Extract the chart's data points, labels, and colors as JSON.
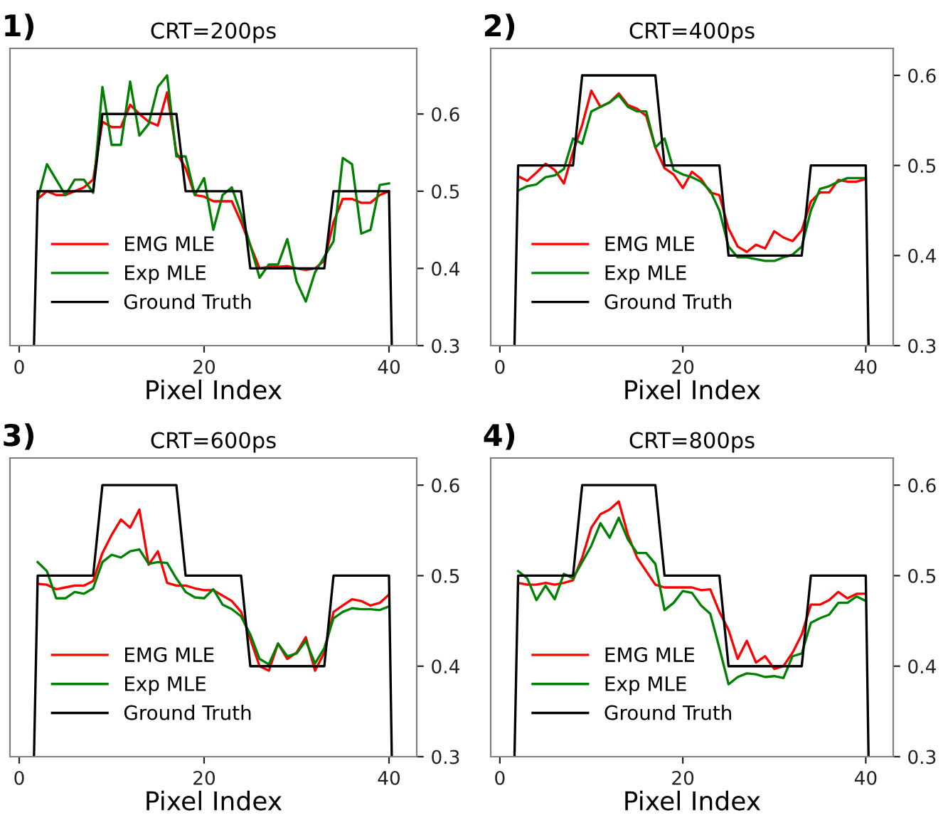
{
  "chart_data": [
    {
      "type": "line",
      "title": "CRT=200ps",
      "annotations": [
        "1)"
      ],
      "xlabel": "Pixel Index",
      "x": [
        2,
        3,
        4,
        5,
        6,
        7,
        8,
        9,
        10,
        11,
        12,
        13,
        14,
        15,
        16,
        17,
        18,
        19,
        20,
        21,
        22,
        23,
        24,
        25,
        26,
        27,
        28,
        29,
        30,
        31,
        32,
        33,
        34,
        35,
        36,
        37,
        38,
        39,
        40
      ],
      "xlim": [
        -1,
        43
      ],
      "xticks": [
        0,
        20,
        40
      ],
      "ylim": [
        0.3,
        0.685
      ],
      "yticks": [
        0.3,
        0.4,
        0.5,
        0.6
      ],
      "grid": false,
      "legend": "bottom left",
      "series": [
        {
          "name": "EMG MLE",
          "color": "#ff0000",
          "values": [
            0.49,
            0.5,
            0.495,
            0.495,
            0.5,
            0.505,
            0.515,
            0.59,
            0.583,
            0.583,
            0.612,
            0.6,
            0.59,
            0.585,
            0.628,
            0.55,
            0.53,
            0.495,
            0.493,
            0.487,
            0.487,
            0.487,
            0.46,
            0.43,
            0.4,
            0.402,
            0.402,
            0.403,
            0.4,
            0.398,
            0.4,
            0.41,
            0.46,
            0.49,
            0.49,
            0.485,
            0.485,
            0.495,
            0.5
          ]
        },
        {
          "name": "Exp MLE",
          "color": "#008000",
          "values": [
            0.49,
            0.535,
            0.515,
            0.495,
            0.515,
            0.515,
            0.498,
            0.635,
            0.56,
            0.56,
            0.642,
            0.572,
            0.587,
            0.635,
            0.65,
            0.545,
            0.545,
            0.495,
            0.517,
            0.45,
            0.495,
            0.505,
            0.47,
            0.43,
            0.388,
            0.405,
            0.405,
            0.438,
            0.383,
            0.357,
            0.395,
            0.415,
            0.435,
            0.543,
            0.535,
            0.445,
            0.45,
            0.508,
            0.51
          ]
        },
        {
          "name": "Ground Truth",
          "color": "#000000",
          "x": [
            1.6,
            2,
            8,
            9,
            17,
            18,
            24,
            25,
            33,
            34,
            40,
            40.3
          ],
          "values": [
            0.3,
            0.5,
            0.5,
            0.6,
            0.6,
            0.5,
            0.5,
            0.4,
            0.4,
            0.5,
            0.5,
            0.3
          ]
        }
      ]
    },
    {
      "type": "line",
      "title": "CRT=400ps",
      "annotations": [
        "2)"
      ],
      "xlabel": "Pixel Index",
      "x": [
        2,
        3,
        4,
        5,
        6,
        7,
        8,
        9,
        10,
        11,
        12,
        13,
        14,
        15,
        16,
        17,
        18,
        19,
        20,
        21,
        22,
        23,
        24,
        25,
        26,
        27,
        28,
        29,
        30,
        31,
        32,
        33,
        34,
        35,
        36,
        37,
        38,
        39,
        40
      ],
      "xlim": [
        -1,
        43
      ],
      "xticks": [
        0,
        20,
        40
      ],
      "ylim": [
        0.3,
        0.63
      ],
      "yticks": [
        0.3,
        0.4,
        0.5,
        0.6
      ],
      "grid": false,
      "legend": "bottom left",
      "series": [
        {
          "name": "EMG MLE",
          "color": "#ff0000",
          "values": [
            0.488,
            0.483,
            0.492,
            0.502,
            0.495,
            0.48,
            0.515,
            0.545,
            0.583,
            0.565,
            0.57,
            0.58,
            0.567,
            0.563,
            0.555,
            0.52,
            0.497,
            0.49,
            0.475,
            0.493,
            0.485,
            0.47,
            0.467,
            0.43,
            0.41,
            0.404,
            0.412,
            0.408,
            0.427,
            0.42,
            0.416,
            0.428,
            0.46,
            0.47,
            0.47,
            0.484,
            0.482,
            0.482,
            0.485
          ]
        },
        {
          "name": "Exp MLE",
          "color": "#008000",
          "values": [
            0.472,
            0.477,
            0.479,
            0.487,
            0.489,
            0.496,
            0.53,
            0.524,
            0.56,
            0.565,
            0.57,
            0.578,
            0.565,
            0.56,
            0.56,
            0.52,
            0.53,
            0.495,
            0.49,
            0.487,
            0.482,
            0.472,
            0.45,
            0.41,
            0.398,
            0.398,
            0.396,
            0.394,
            0.394,
            0.398,
            0.401,
            0.41,
            0.45,
            0.474,
            0.477,
            0.482,
            0.486,
            0.486,
            0.486
          ]
        },
        {
          "name": "Ground Truth",
          "color": "#000000",
          "x": [
            1.6,
            2,
            8,
            9,
            17,
            18,
            24,
            25,
            33,
            34,
            40,
            40.3
          ],
          "values": [
            0.3,
            0.5,
            0.5,
            0.6,
            0.6,
            0.5,
            0.5,
            0.4,
            0.4,
            0.5,
            0.5,
            0.3
          ]
        }
      ]
    },
    {
      "type": "line",
      "title": "CRT=600ps",
      "annotations": [
        "3)"
      ],
      "xlabel": "Pixel Index",
      "x": [
        2,
        3,
        4,
        5,
        6,
        7,
        8,
        9,
        10,
        11,
        12,
        13,
        14,
        15,
        16,
        17,
        18,
        19,
        20,
        21,
        22,
        23,
        24,
        25,
        26,
        27,
        28,
        29,
        30,
        31,
        32,
        33,
        34,
        35,
        36,
        37,
        38,
        39,
        40
      ],
      "xlim": [
        -1,
        43
      ],
      "xticks": [
        0,
        20,
        40
      ],
      "ylim": [
        0.3,
        0.63
      ],
      "yticks": [
        0.3,
        0.4,
        0.5,
        0.6
      ],
      "grid": false,
      "legend": "bottom left",
      "series": [
        {
          "name": "EMG MLE",
          "color": "#ff0000",
          "values": [
            0.491,
            0.49,
            0.485,
            0.487,
            0.489,
            0.489,
            0.494,
            0.525,
            0.545,
            0.562,
            0.553,
            0.573,
            0.512,
            0.527,
            0.492,
            0.489,
            0.489,
            0.486,
            0.484,
            0.484,
            0.478,
            0.472,
            0.46,
            0.43,
            0.4,
            0.395,
            0.425,
            0.408,
            0.415,
            0.432,
            0.395,
            0.415,
            0.46,
            0.467,
            0.474,
            0.472,
            0.467,
            0.47,
            0.479
          ]
        },
        {
          "name": "Exp MLE",
          "color": "#008000",
          "values": [
            0.515,
            0.505,
            0.475,
            0.475,
            0.482,
            0.48,
            0.486,
            0.515,
            0.523,
            0.52,
            0.527,
            0.529,
            0.513,
            0.515,
            0.514,
            0.497,
            0.482,
            0.476,
            0.475,
            0.485,
            0.468,
            0.463,
            0.455,
            0.435,
            0.408,
            0.402,
            0.425,
            0.411,
            0.414,
            0.428,
            0.403,
            0.42,
            0.453,
            0.46,
            0.464,
            0.463,
            0.463,
            0.462,
            0.466
          ]
        },
        {
          "name": "Ground Truth",
          "color": "#000000",
          "x": [
            1.6,
            2,
            8,
            9,
            17,
            18,
            24,
            25,
            33,
            34,
            40,
            40.3
          ],
          "values": [
            0.3,
            0.5,
            0.5,
            0.6,
            0.6,
            0.5,
            0.5,
            0.4,
            0.4,
            0.5,
            0.5,
            0.3
          ]
        }
      ]
    },
    {
      "type": "line",
      "title": "CRT=800ps",
      "annotations": [
        "4)"
      ],
      "xlabel": "Pixel Index",
      "x": [
        2,
        3,
        4,
        5,
        6,
        7,
        8,
        9,
        10,
        11,
        12,
        13,
        14,
        15,
        16,
        17,
        18,
        19,
        20,
        21,
        22,
        23,
        24,
        25,
        26,
        27,
        28,
        29,
        30,
        31,
        32,
        33,
        34,
        35,
        36,
        37,
        38,
        39,
        40
      ],
      "xlim": [
        -1,
        43
      ],
      "xticks": [
        0,
        20,
        40
      ],
      "ylim": [
        0.3,
        0.63
      ],
      "yticks": [
        0.3,
        0.4,
        0.5,
        0.6
      ],
      "grid": false,
      "legend": "bottom left",
      "series": [
        {
          "name": "EMG MLE",
          "color": "#ff0000",
          "values": [
            0.492,
            0.49,
            0.49,
            0.492,
            0.49,
            0.492,
            0.495,
            0.52,
            0.553,
            0.568,
            0.573,
            0.582,
            0.545,
            0.52,
            0.505,
            0.49,
            0.487,
            0.487,
            0.487,
            0.487,
            0.484,
            0.485,
            0.46,
            0.44,
            0.408,
            0.428,
            0.404,
            0.411,
            0.397,
            0.4,
            0.415,
            0.435,
            0.468,
            0.468,
            0.473,
            0.482,
            0.475,
            0.48,
            0.48
          ]
        },
        {
          "name": "Exp MLE",
          "color": "#008000",
          "values": [
            0.505,
            0.497,
            0.473,
            0.489,
            0.474,
            0.502,
            0.497,
            0.515,
            0.533,
            0.558,
            0.542,
            0.564,
            0.54,
            0.525,
            0.525,
            0.513,
            0.462,
            0.47,
            0.483,
            0.481,
            0.467,
            0.458,
            0.42,
            0.38,
            0.388,
            0.392,
            0.391,
            0.388,
            0.389,
            0.387,
            0.411,
            0.414,
            0.448,
            0.453,
            0.457,
            0.47,
            0.47,
            0.477,
            0.472
          ]
        },
        {
          "name": "Ground Truth",
          "color": "#000000",
          "x": [
            1.6,
            2,
            8,
            9,
            17,
            18,
            24,
            25,
            33,
            34,
            40,
            40.3
          ],
          "values": [
            0.3,
            0.5,
            0.5,
            0.6,
            0.6,
            0.5,
            0.5,
            0.4,
            0.4,
            0.5,
            0.5,
            0.3
          ]
        }
      ]
    }
  ]
}
